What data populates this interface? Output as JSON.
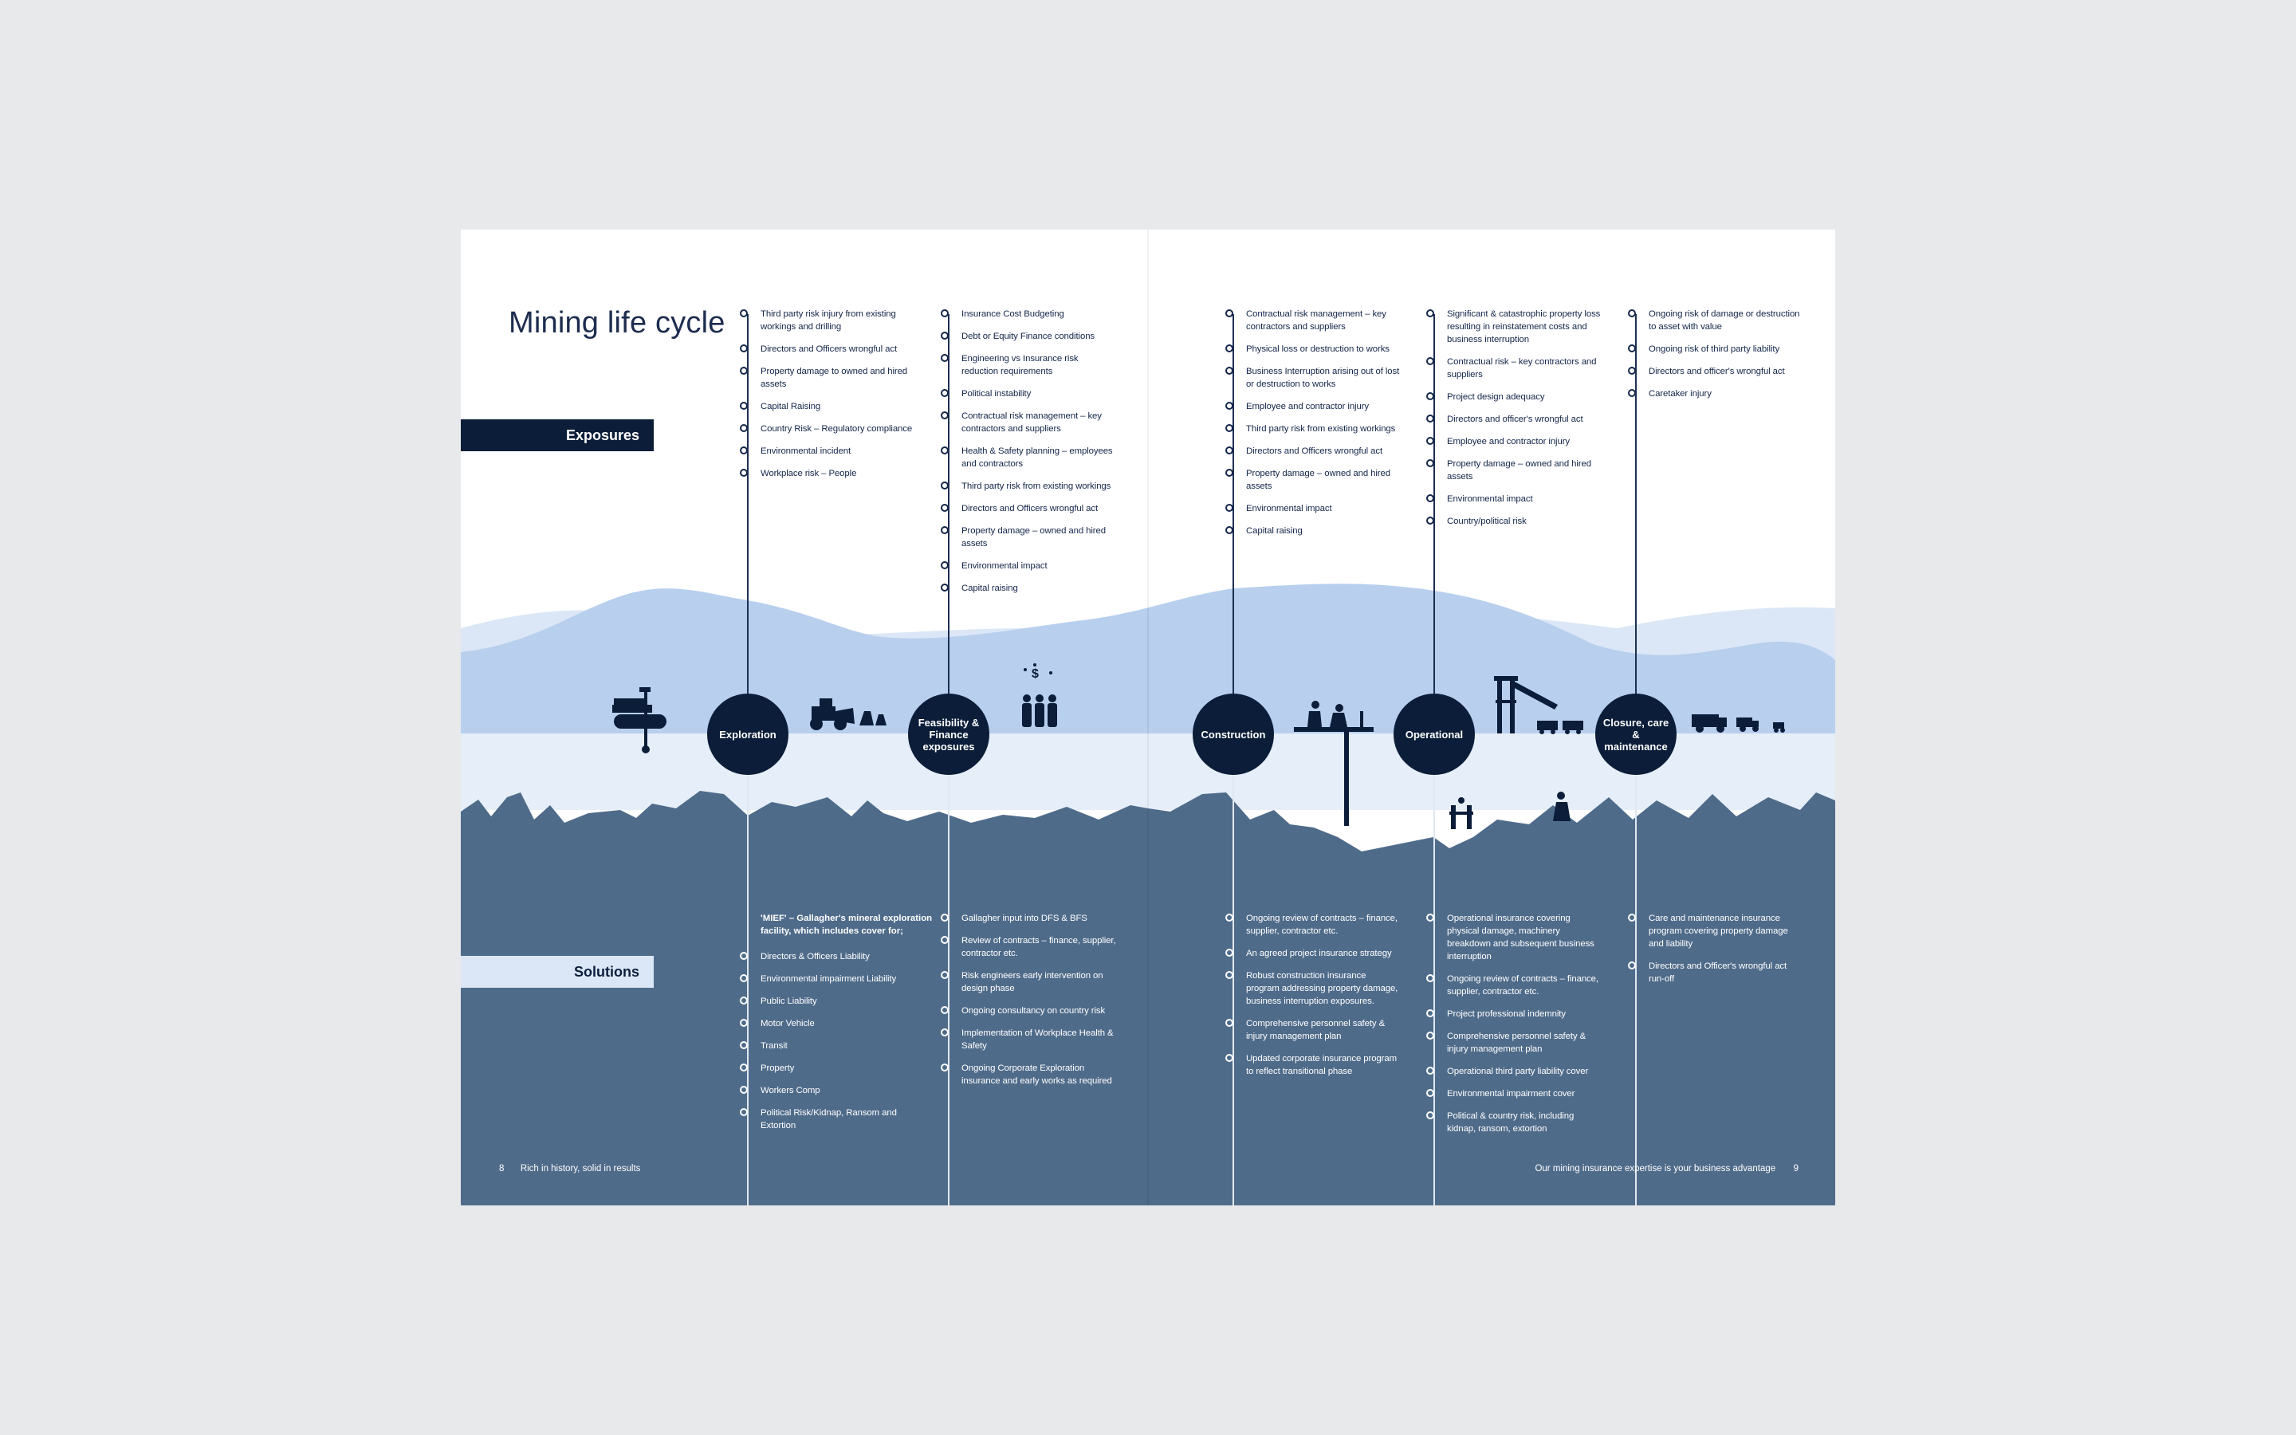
{
  "title": "Mining life cycle",
  "tabs": {
    "exposures": "Exposures",
    "solutions": "Solutions"
  },
  "stages": [
    {
      "label": "Exploration"
    },
    {
      "label": "Feasibility & Finance exposures"
    },
    {
      "label": "Construction"
    },
    {
      "label": "Operational"
    },
    {
      "label": "Closure, care & maintenance"
    }
  ],
  "exposures": [
    [
      "Third party risk injury from existing workings and drilling",
      "Directors and Officers wrongful act",
      "Property damage to owned and hired assets",
      "Capital Raising",
      "Country Risk – Regulatory compliance",
      "Environmental incident",
      "Workplace risk – People"
    ],
    [
      "Insurance Cost Budgeting",
      "Debt or Equity Finance conditions",
      "Engineering vs Insurance risk reduction requirements",
      "Political instability",
      "Contractual risk management – key contractors and suppliers",
      "Health & Safety planning – employees and contractors",
      "Third party risk from existing workings",
      "Directors and Officers wrongful act",
      "Property damage – owned and hired assets",
      "Environmental impact",
      "Capital raising"
    ],
    [
      "Contractual risk management – key contractors and suppliers",
      "Physical loss or destruction to works",
      "Business Interruption arising out of lost or destruction to works",
      "Employee and contractor injury",
      "Third party risk from existing workings",
      "Directors and Officers wrongful act",
      "Property damage – owned and hired assets",
      "Environmental impact",
      "Capital raising"
    ],
    [
      "Significant & catastrophic property loss resulting in reinstatement costs and business interruption",
      "Contractual risk – key contractors and suppliers",
      "Project design adequacy",
      "Directors and officer's wrongful act",
      "Employee and contractor injury",
      "Property damage – owned and hired assets",
      "Environmental impact",
      "Country/political risk"
    ],
    [
      "Ongoing risk of damage or destruction to asset with value",
      "Ongoing risk of third party liability",
      "Directors and officer's wrongful act",
      "Caretaker injury"
    ]
  ],
  "solutions_intro": "'MIEF' – Gallagher's mineral exploration facility, which includes cover for;",
  "solutions": [
    [
      "Directors & Officers Liability",
      "Environmental impairment Liability",
      "Public Liability",
      "Motor Vehicle",
      "Transit",
      "Property",
      "Workers Comp",
      "Political Risk/Kidnap, Ransom and Extortion"
    ],
    [
      "Gallagher input into DFS & BFS",
      "Review of contracts – finance, supplier, contractor etc.",
      "Risk engineers early intervention on design phase",
      "Ongoing consultancy on country risk",
      "Implementation of Workplace Health & Safety",
      "Ongoing Corporate Exploration insurance and early works as required"
    ],
    [
      "Ongoing review of contracts – finance, supplier, contractor etc.",
      "An agreed project insurance strategy",
      "Robust construction insurance program addressing property damage, business interruption exposures.",
      "Comprehensive personnel safety & injury management plan",
      "Updated corporate insurance program to reflect transitional phase"
    ],
    [
      "Operational insurance covering physical damage, machinery breakdown and subsequent business interruption",
      "Ongoing review of contracts – finance, supplier, contractor etc.",
      "Project professional indemnity",
      "Comprehensive personnel safety & injury management plan",
      "Operational third party liability cover",
      "Environmental impairment cover",
      "Political & country risk, including kidnap, ransom, extortion"
    ],
    [
      "Care and maintenance insurance program covering property damage and liability",
      "Directors and Officer's wrongful act run-off"
    ]
  ],
  "footer": {
    "left_page": "8",
    "left_text": "Rich in history, solid in results",
    "right_text": "Our mining insurance expertise is your business advantage",
    "right_page": "9"
  },
  "colors": {
    "navy": "#0b1d38",
    "hill_light": "#dbe7f6",
    "hill_mid": "#b8cfee",
    "band": "#e6eef9",
    "ground": "#4f6b8a"
  }
}
